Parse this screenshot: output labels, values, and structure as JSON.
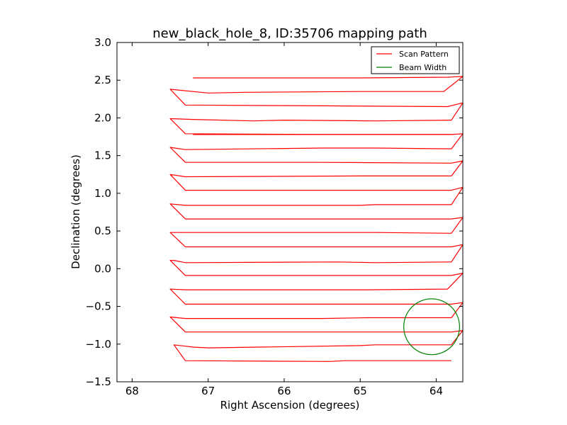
{
  "chart_data": {
    "type": "line",
    "title": "new_black_hole_8, ID:35706 mapping path",
    "xlabel": "Right Ascension (degrees)",
    "ylabel": "Declination (degrees)",
    "xlim": [
      68.2,
      63.65
    ],
    "ylim": [
      -1.5,
      3.0
    ],
    "xticks": [
      68,
      67,
      66,
      65,
      64
    ],
    "xtick_labels": [
      "68",
      "67",
      "66",
      "65",
      "64"
    ],
    "yticks": [
      3.0,
      2.5,
      2.0,
      1.5,
      1.0,
      0.5,
      0.0,
      -0.5,
      -1.0,
      -1.5
    ],
    "ytick_labels": [
      "3.0",
      "2.5",
      "2.0",
      "1.5",
      "1.0",
      "0.5",
      "0.0",
      "−0.5",
      "−1.0",
      "−1.5"
    ],
    "legend": {
      "placement": "top-right",
      "entries": [
        {
          "label": "Scan Pattern",
          "color": "#ff0000"
        },
        {
          "label": "Beam Width",
          "color": "#008000"
        }
      ]
    },
    "series": [
      {
        "name": "Scan Pattern",
        "color": "#ff0000",
        "x": [
          63.8,
          65.2,
          65.4,
          67.3,
          67.45,
          67.2,
          67.0,
          65.0,
          64.8,
          63.8,
          63.65,
          63.8,
          65.3,
          67.3,
          67.5,
          67.3,
          65.5,
          64.9,
          63.8,
          63.65,
          63.8,
          65.2,
          67.3,
          67.5,
          67.3,
          65.5,
          64.9,
          63.85,
          63.65,
          63.8,
          65.5,
          67.3,
          67.5,
          67.45,
          67.3,
          65.3,
          64.8,
          63.8,
          63.65,
          63.8,
          65.5,
          67.3,
          67.5,
          67.3,
          65.0,
          64.8,
          63.8,
          63.65,
          63.8,
          65.5,
          67.3,
          67.5,
          67.3,
          65.0,
          64.8,
          63.8,
          63.65,
          63.8,
          65.5,
          67.3,
          67.5,
          67.3,
          65.0,
          64.8,
          63.8,
          63.65,
          63.8,
          65.5,
          67.3,
          67.5,
          67.3,
          65.5,
          64.8,
          63.8,
          63.65,
          63.8,
          65.5,
          67.2
        ],
        "y": [
          -1.22,
          -1.22,
          -1.23,
          -1.22,
          -1.01,
          -1.04,
          -1.05,
          -1.02,
          -1.01,
          -1.01,
          -0.82,
          -0.84,
          -0.84,
          -0.84,
          -0.64,
          -0.66,
          -0.66,
          -0.65,
          -0.65,
          -0.45,
          -0.47,
          -0.47,
          -0.47,
          -0.27,
          -0.28,
          -0.28,
          -0.28,
          -0.27,
          -0.06,
          -0.09,
          -0.09,
          -0.09,
          0.11,
          0.11,
          0.08,
          0.09,
          0.08,
          0.09,
          0.32,
          0.29,
          0.29,
          0.29,
          0.48,
          0.48,
          0.48,
          0.48,
          0.47,
          0.68,
          0.66,
          0.66,
          0.66,
          0.86,
          0.84,
          0.84,
          0.85,
          0.85,
          1.08,
          1.04,
          1.04,
          1.04,
          1.25,
          1.22,
          1.23,
          1.23,
          1.23,
          1.43,
          1.4,
          1.41,
          1.41,
          1.61,
          1.58,
          1.6,
          1.6,
          1.59,
          1.79,
          1.78,
          1.78,
          1.78
        ]
      },
      {
        "name": "Scan Pattern",
        "color": "#ff0000",
        "x": [
          63.8,
          65.5,
          67.3,
          67.5,
          67.2,
          66.4,
          66.0,
          64.8,
          63.8,
          63.65,
          63.85,
          65.5,
          67.3,
          67.5,
          67.0,
          66.5,
          65.0,
          64.2,
          63.9,
          63.65,
          63.85,
          65.0,
          67.2
        ],
        "y": [
          1.78,
          1.78,
          1.79,
          1.99,
          1.98,
          1.96,
          1.97,
          1.96,
          1.97,
          2.2,
          2.15,
          2.16,
          2.17,
          2.38,
          2.33,
          2.34,
          2.35,
          2.35,
          2.35,
          2.55,
          2.54,
          2.53,
          2.53
        ]
      }
    ],
    "beam": {
      "name": "Beam Width",
      "center_x": 64.06,
      "center_y": -0.77,
      "radius": 0.37,
      "color": "#008000"
    }
  }
}
